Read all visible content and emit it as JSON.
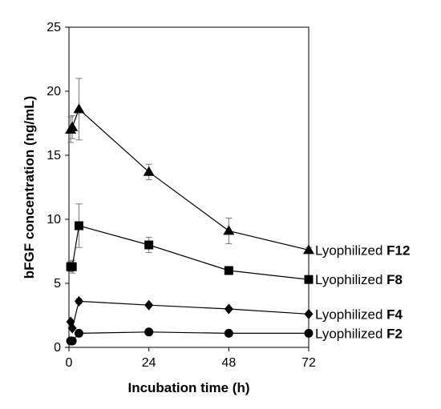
{
  "chart_data": {
    "type": "line",
    "title": "",
    "xlabel": "Incubation time  (h)",
    "ylabel": "bFGF concentration  (ng/mL)",
    "xlim": [
      0,
      72
    ],
    "ylim": [
      0,
      25
    ],
    "xticks": [
      0,
      24,
      48,
      72
    ],
    "yticks": [
      0,
      5,
      10,
      15,
      20,
      25
    ],
    "grid": false,
    "legend": "series labels at right end of each line",
    "series": [
      {
        "name_prefix": "Lyophilized",
        "name_id": "F12",
        "marker": "triangle",
        "x": [
          0.5,
          1,
          3,
          24,
          48,
          72
        ],
        "y": [
          17.0,
          17.2,
          18.6,
          13.7,
          9.1,
          7.6
        ],
        "error": [
          1.0,
          0.9,
          2.4,
          0.6,
          1.0,
          0.2
        ]
      },
      {
        "name_prefix": "Lyophilized",
        "name_id": "F8",
        "marker": "square",
        "x": [
          0.5,
          1,
          3,
          24,
          48,
          72
        ],
        "y": [
          6.3,
          6.3,
          9.5,
          8.0,
          6.0,
          5.3
        ],
        "error": [
          0.4,
          0.5,
          1.7,
          0.6,
          0.1,
          0.1
        ]
      },
      {
        "name_prefix": "Lyophilized",
        "name_id": "F4",
        "marker": "diamond",
        "x": [
          0.5,
          1,
          3,
          24,
          48,
          72
        ],
        "y": [
          2.0,
          1.5,
          3.6,
          3.3,
          3.0,
          2.6
        ],
        "error": [
          0.1,
          0.1,
          0.2,
          0.1,
          0.1,
          0.1
        ]
      },
      {
        "name_prefix": "Lyophilized",
        "name_id": "F2",
        "marker": "circle",
        "x": [
          0.5,
          1,
          3,
          24,
          48,
          72
        ],
        "y": [
          0.5,
          0.5,
          1.1,
          1.2,
          1.1,
          1.1
        ],
        "error": [
          0.05,
          0.05,
          0.1,
          0.1,
          0.05,
          0.05
        ]
      }
    ]
  }
}
